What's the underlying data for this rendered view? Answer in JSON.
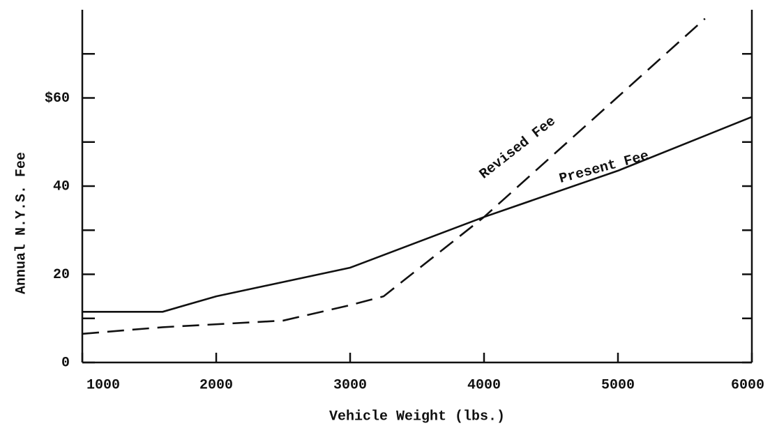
{
  "chart_data": {
    "type": "line",
    "x_label": "Vehicle Weight (lbs.)",
    "y_label": "Annual N.Y.S. Fee",
    "xlim": [
      1000,
      6000
    ],
    "xticks": [
      1000,
      2000,
      3000,
      4000,
      5000,
      6000
    ],
    "ylim": [
      0,
      80
    ],
    "yticks": [
      0,
      20,
      40,
      {
        "value": 60,
        "label": "$60"
      }
    ],
    "minor_yticks": [
      10,
      30,
      50,
      70
    ],
    "annotations": [
      "Revised Fee",
      "Present Fee"
    ],
    "series": [
      {
        "name": "Present Fee",
        "color": "#111111",
        "linestyle": "solid",
        "x": [
          1000,
          1600,
          2000,
          3000,
          4000,
          5000,
          6000
        ],
        "values": [
          11.5,
          11.5,
          15,
          21.5,
          33,
          43.5,
          55.7
        ]
      },
      {
        "name": "Revised Fee",
        "color": "#111111",
        "linestyle": "dashed",
        "x": [
          1000,
          1600,
          2500,
          3000,
          3250,
          4000,
          5650
        ],
        "values": [
          6.5,
          8,
          9.5,
          13,
          15,
          33,
          78
        ]
      }
    ]
  }
}
